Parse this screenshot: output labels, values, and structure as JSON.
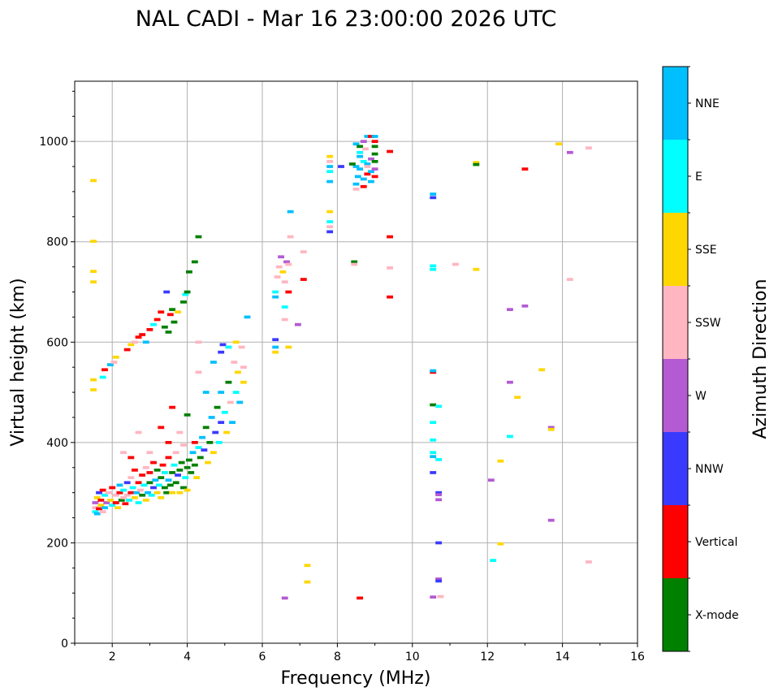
{
  "chart_data": {
    "type": "scatter",
    "title": "NAL CADI - Mar 16 23:00:00 2026 UTC",
    "xlabel": "Frequency (MHz)",
    "ylabel": "Virtual height (km)",
    "xlim": [
      1,
      16
    ],
    "ylim": [
      0,
      1120
    ],
    "xticks": [
      2,
      4,
      6,
      8,
      10,
      12,
      14,
      16
    ],
    "yticks": [
      0,
      200,
      400,
      600,
      800,
      1000
    ],
    "grid": true,
    "colorbar": {
      "label": "Azimuth Direction",
      "categories": [
        "X-mode",
        "Vertical",
        "NNW",
        "W",
        "SSW",
        "SSE",
        "E",
        "NNE"
      ],
      "colors": [
        "#008000",
        "#ff0000",
        "#3a3aff",
        "#b45ad2",
        "#ffb6c1",
        "#ffd700",
        "#00ffff",
        "#00bfff"
      ]
    },
    "point_format": [
      "frequency_mhz",
      "virtual_height_km",
      "category_index"
    ],
    "points": [
      [
        1.55,
        262,
        6
      ],
      [
        1.55,
        270,
        4
      ],
      [
        1.55,
        280,
        3
      ],
      [
        1.6,
        258,
        7
      ],
      [
        1.6,
        290,
        5
      ],
      [
        1.65,
        268,
        1
      ],
      [
        1.65,
        300,
        2
      ],
      [
        1.7,
        275,
        5
      ],
      [
        1.7,
        285,
        1
      ],
      [
        1.75,
        262,
        4
      ],
      [
        1.75,
        305,
        1
      ],
      [
        1.8,
        270,
        7
      ],
      [
        1.8,
        295,
        6
      ],
      [
        1.85,
        280,
        3
      ],
      [
        1.9,
        300,
        4
      ],
      [
        1.95,
        285,
        5
      ],
      [
        2.0,
        275,
        6
      ],
      [
        2.0,
        310,
        1
      ],
      [
        2.1,
        280,
        1
      ],
      [
        2.1,
        295,
        4
      ],
      [
        2.15,
        270,
        5
      ],
      [
        2.2,
        300,
        1
      ],
      [
        2.2,
        315,
        7
      ],
      [
        2.25,
        285,
        0
      ],
      [
        2.3,
        290,
        4
      ],
      [
        2.3,
        305,
        6
      ],
      [
        2.35,
        278,
        1
      ],
      [
        2.4,
        295,
        4
      ],
      [
        2.4,
        320,
        2
      ],
      [
        2.45,
        285,
        6
      ],
      [
        2.5,
        300,
        1
      ],
      [
        2.5,
        330,
        4
      ],
      [
        2.55,
        310,
        6
      ],
      [
        2.6,
        290,
        5
      ],
      [
        2.6,
        345,
        1
      ],
      [
        2.65,
        300,
        7
      ],
      [
        2.7,
        320,
        1
      ],
      [
        2.7,
        280,
        6
      ],
      [
        2.75,
        305,
        4
      ],
      [
        2.8,
        295,
        0
      ],
      [
        2.8,
        335,
        1
      ],
      [
        2.85,
        315,
        6
      ],
      [
        2.9,
        285,
        5
      ],
      [
        2.9,
        350,
        4
      ],
      [
        2.95,
        300,
        7
      ],
      [
        3.0,
        320,
        0
      ],
      [
        3.0,
        340,
        1
      ],
      [
        3.05,
        295,
        6
      ],
      [
        3.1,
        310,
        2
      ],
      [
        3.1,
        360,
        1
      ],
      [
        3.15,
        325,
        7
      ],
      [
        3.2,
        300,
        5
      ],
      [
        3.2,
        345,
        0
      ],
      [
        3.25,
        315,
        6
      ],
      [
        3.3,
        330,
        0
      ],
      [
        3.3,
        290,
        5
      ],
      [
        3.35,
        355,
        1
      ],
      [
        3.4,
        310,
        0
      ],
      [
        3.4,
        340,
        6
      ],
      [
        3.45,
        300,
        0
      ],
      [
        3.5,
        325,
        7
      ],
      [
        3.5,
        370,
        1
      ],
      [
        3.55,
        315,
        0
      ],
      [
        3.6,
        340,
        0
      ],
      [
        3.6,
        300,
        5
      ],
      [
        3.65,
        355,
        6
      ],
      [
        3.7,
        320,
        0
      ],
      [
        3.7,
        380,
        4
      ],
      [
        3.75,
        335,
        2
      ],
      [
        3.8,
        300,
        5
      ],
      [
        3.8,
        345,
        0
      ],
      [
        3.85,
        360,
        0
      ],
      [
        3.9,
        310,
        0
      ],
      [
        3.9,
        395,
        4
      ],
      [
        3.95,
        330,
        6
      ],
      [
        4.0,
        350,
        0
      ],
      [
        4.0,
        305,
        5
      ],
      [
        4.05,
        365,
        0
      ],
      [
        4.1,
        340,
        0
      ],
      [
        4.15,
        380,
        7
      ],
      [
        4.2,
        355,
        0
      ],
      [
        4.2,
        400,
        1
      ],
      [
        4.25,
        330,
        5
      ],
      [
        4.3,
        390,
        6
      ],
      [
        4.35,
        370,
        0
      ],
      [
        4.4,
        410,
        7
      ],
      [
        4.45,
        385,
        2
      ],
      [
        4.5,
        430,
        0
      ],
      [
        4.55,
        360,
        5
      ],
      [
        4.6,
        400,
        0
      ],
      [
        4.65,
        450,
        7
      ],
      [
        4.7,
        380,
        5
      ],
      [
        4.75,
        420,
        2
      ],
      [
        4.8,
        470,
        0
      ],
      [
        4.85,
        400,
        6
      ],
      [
        4.9,
        440,
        2
      ],
      [
        4.9,
        500,
        7
      ],
      [
        4.95,
        595,
        2
      ],
      [
        5.0,
        460,
        6
      ],
      [
        5.05,
        420,
        5
      ],
      [
        5.1,
        520,
        0
      ],
      [
        5.15,
        480,
        4
      ],
      [
        5.2,
        440,
        7
      ],
      [
        5.25,
        560,
        4
      ],
      [
        5.3,
        500,
        6
      ],
      [
        5.35,
        540,
        5
      ],
      [
        5.4,
        480,
        7
      ],
      [
        5.45,
        590,
        4
      ],
      [
        5.5,
        520,
        5
      ],
      [
        5.5,
        550,
        4
      ],
      [
        5.6,
        650,
        7
      ],
      [
        2.3,
        380,
        4
      ],
      [
        2.5,
        370,
        1
      ],
      [
        2.7,
        420,
        4
      ],
      [
        3.0,
        380,
        4
      ],
      [
        3.3,
        430,
        1
      ],
      [
        3.5,
        400,
        1
      ],
      [
        3.6,
        470,
        1
      ],
      [
        3.8,
        420,
        4
      ],
      [
        4.0,
        455,
        0
      ],
      [
        4.3,
        540,
        4
      ],
      [
        4.5,
        500,
        7
      ],
      [
        4.7,
        560,
        7
      ],
      [
        4.3,
        600,
        4
      ],
      [
        4.9,
        580,
        2
      ],
      [
        5.1,
        590,
        6
      ],
      [
        5.3,
        600,
        5
      ],
      [
        1.5,
        525,
        5
      ],
      [
        1.5,
        505,
        5
      ],
      [
        1.75,
        530,
        6
      ],
      [
        1.8,
        545,
        1
      ],
      [
        1.95,
        555,
        7
      ],
      [
        2.05,
        560,
        4
      ],
      [
        2.1,
        570,
        5
      ],
      [
        2.4,
        585,
        1
      ],
      [
        2.5,
        595,
        5
      ],
      [
        2.6,
        600,
        4
      ],
      [
        2.7,
        610,
        1
      ],
      [
        2.8,
        615,
        1
      ],
      [
        2.9,
        600,
        7
      ],
      [
        3.0,
        625,
        1
      ],
      [
        3.1,
        635,
        6
      ],
      [
        3.2,
        645,
        1
      ],
      [
        3.3,
        660,
        1
      ],
      [
        3.4,
        630,
        0
      ],
      [
        3.45,
        700,
        2
      ],
      [
        3.5,
        620,
        0
      ],
      [
        3.55,
        655,
        1
      ],
      [
        3.6,
        665,
        0
      ],
      [
        3.65,
        640,
        0
      ],
      [
        3.75,
        660,
        5
      ],
      [
        3.9,
        680,
        0
      ],
      [
        3.95,
        695,
        6
      ],
      [
        4.0,
        700,
        0
      ],
      [
        4.05,
        740,
        0
      ],
      [
        4.2,
        760,
        0
      ],
      [
        4.3,
        810,
        0
      ],
      [
        1.5,
        922,
        5
      ],
      [
        1.5,
        801,
        5
      ],
      [
        1.5,
        741,
        5
      ],
      [
        1.5,
        720,
        5
      ],
      [
        6.35,
        700,
        6
      ],
      [
        6.35,
        690,
        7
      ],
      [
        6.4,
        730,
        4
      ],
      [
        6.45,
        750,
        4
      ],
      [
        6.5,
        770,
        3
      ],
      [
        6.55,
        740,
        5
      ],
      [
        6.6,
        720,
        4
      ],
      [
        6.65,
        760,
        3
      ],
      [
        6.7,
        700,
        1
      ],
      [
        6.7,
        755,
        4
      ],
      [
        6.75,
        860,
        7
      ],
      [
        6.35,
        605,
        2
      ],
      [
        6.35,
        590,
        7
      ],
      [
        6.35,
        580,
        5
      ],
      [
        6.6,
        645,
        4
      ],
      [
        6.6,
        670,
        6
      ],
      [
        6.7,
        590,
        5
      ],
      [
        6.95,
        635,
        3
      ],
      [
        7.1,
        725,
        1
      ],
      [
        7.1,
        780,
        4
      ],
      [
        6.75,
        810,
        4
      ],
      [
        6.6,
        90,
        3
      ],
      [
        7.2,
        155,
        5
      ],
      [
        7.2,
        122,
        5
      ],
      [
        7.8,
        970,
        5
      ],
      [
        7.8,
        960,
        4
      ],
      [
        7.8,
        950,
        7
      ],
      [
        7.8,
        940,
        6
      ],
      [
        7.8,
        920,
        7
      ],
      [
        7.8,
        860,
        5
      ],
      [
        7.8,
        840,
        6
      ],
      [
        7.8,
        830,
        4
      ],
      [
        7.8,
        820,
        2
      ],
      [
        8.1,
        950,
        2
      ],
      [
        8.45,
        760,
        0
      ],
      [
        8.45,
        755,
        4
      ],
      [
        8.6,
        90,
        1
      ],
      [
        8.5,
        995,
        7
      ],
      [
        8.6,
        990,
        0
      ],
      [
        8.7,
        1000,
        3
      ],
      [
        8.8,
        1010,
        7
      ],
      [
        8.9,
        1010,
        1
      ],
      [
        9.0,
        1010,
        7
      ],
      [
        8.5,
        950,
        7
      ],
      [
        8.6,
        945,
        7
      ],
      [
        8.7,
        960,
        6
      ],
      [
        8.8,
        955,
        7
      ],
      [
        8.9,
        965,
        3
      ],
      [
        9.0,
        975,
        0
      ],
      [
        9.0,
        990,
        0
      ],
      [
        9.0,
        1000,
        1
      ],
      [
        8.55,
        930,
        7
      ],
      [
        8.7,
        925,
        7
      ],
      [
        8.8,
        935,
        1
      ],
      [
        8.9,
        940,
        7
      ],
      [
        9.0,
        945,
        3
      ],
      [
        8.7,
        910,
        1
      ],
      [
        8.5,
        915,
        7
      ],
      [
        8.5,
        905,
        4
      ],
      [
        8.8,
        950,
        4
      ],
      [
        8.9,
        920,
        7
      ],
      [
        8.6,
        970,
        7
      ],
      [
        8.4,
        955,
        0
      ],
      [
        8.75,
        985,
        4
      ],
      [
        9.0,
        960,
        0
      ],
      [
        9.0,
        930,
        1
      ],
      [
        9.4,
        980,
        1
      ],
      [
        9.4,
        810,
        1
      ],
      [
        9.4,
        748,
        4
      ],
      [
        9.4,
        690,
        1
      ],
      [
        8.6,
        978,
        6
      ],
      [
        10.55,
        895,
        7
      ],
      [
        10.55,
        888,
        2
      ],
      [
        10.55,
        752,
        6
      ],
      [
        10.55,
        745,
        6
      ],
      [
        10.55,
        540,
        1
      ],
      [
        10.55,
        543,
        7
      ],
      [
        10.55,
        475,
        0
      ],
      [
        10.7,
        472,
        6
      ],
      [
        10.55,
        440,
        6
      ],
      [
        10.55,
        405,
        6
      ],
      [
        10.55,
        380,
        6
      ],
      [
        10.55,
        372,
        7
      ],
      [
        10.7,
        366,
        6
      ],
      [
        10.55,
        340,
        2
      ],
      [
        10.7,
        300,
        2
      ],
      [
        10.7,
        296,
        3
      ],
      [
        10.7,
        286,
        3
      ],
      [
        10.7,
        200,
        2
      ],
      [
        10.7,
        128,
        3
      ],
      [
        10.7,
        124,
        2
      ],
      [
        10.55,
        92,
        3
      ],
      [
        10.75,
        93,
        4
      ],
      [
        11.15,
        755,
        4
      ],
      [
        11.7,
        958,
        5
      ],
      [
        11.7,
        954,
        0
      ],
      [
        11.7,
        745,
        5
      ],
      [
        12.1,
        325,
        3
      ],
      [
        12.15,
        165,
        6
      ],
      [
        12.35,
        363,
        5
      ],
      [
        12.35,
        198,
        5
      ],
      [
        12.6,
        665,
        3
      ],
      [
        12.6,
        520,
        3
      ],
      [
        12.6,
        412,
        6
      ],
      [
        12.8,
        490,
        5
      ],
      [
        13.0,
        945,
        1
      ],
      [
        13.0,
        672,
        3
      ],
      [
        13.45,
        545,
        5
      ],
      [
        13.7,
        430,
        3
      ],
      [
        13.7,
        426,
        5
      ],
      [
        13.7,
        245,
        3
      ],
      [
        13.9,
        995,
        5
      ],
      [
        14.2,
        978,
        3
      ],
      [
        14.2,
        725,
        4
      ],
      [
        14.7,
        987,
        4
      ],
      [
        14.7,
        162,
        4
      ]
    ]
  }
}
